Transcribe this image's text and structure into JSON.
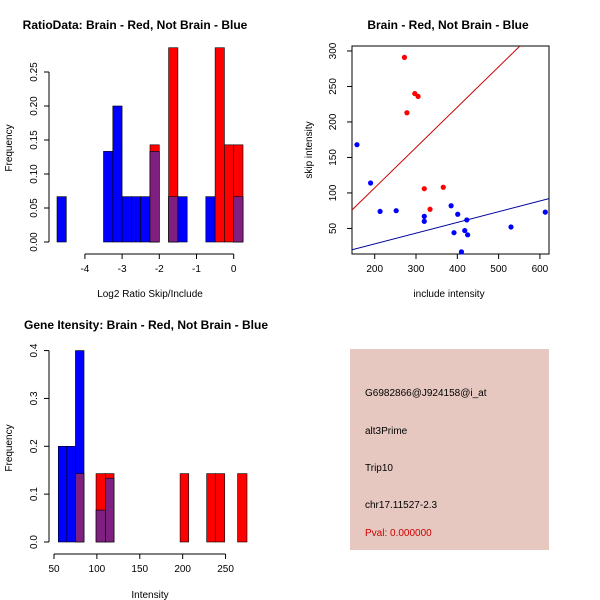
{
  "colors": {
    "brain": "#ff0000",
    "not_brain": "#0000ff",
    "overlap": "#7f1f7f",
    "info_bg": "#e6c8c0",
    "pval": "#cc0000",
    "brain_line": "#cc0000",
    "not_brain_line": "#000099"
  },
  "chart_data": [
    {
      "id": "ratio-hist",
      "type": "bar",
      "title": "RatioData: Brain - Red, Not Brain - Blue",
      "xlabel": "Log2 Ratio Skip/Include",
      "ylabel": "Frequency",
      "xlim": [
        -4.75,
        0.25
      ],
      "ylim": [
        0,
        0.3
      ],
      "xticks": [
        -4,
        -3,
        -2,
        -1,
        0
      ],
      "yticks": [
        0.0,
        0.05,
        0.1,
        0.15,
        0.2,
        0.25
      ],
      "ytick_labels": [
        "0.00",
        "0.05",
        "0.10",
        "0.15",
        "0.20",
        "0.25"
      ],
      "bin_edges": [
        -4.75,
        -4.5,
        -4.25,
        -4.0,
        -3.75,
        -3.5,
        -3.25,
        -3.0,
        -2.75,
        -2.5,
        -2.25,
        -2.0,
        -1.75,
        -1.5,
        -1.25,
        -1.0,
        -0.75,
        -0.5,
        -0.25,
        0.0,
        0.25
      ],
      "series": [
        {
          "name": "Not Brain",
          "color_key": "not_brain",
          "values": [
            0.0667,
            0,
            0,
            0,
            0,
            0.1333,
            0.2,
            0.0667,
            0.0667,
            0.0667,
            0.1333,
            0,
            0.0667,
            0.0667,
            0,
            0,
            0.0667,
            0,
            0,
            0.0667
          ]
        },
        {
          "name": "Brain",
          "color_key": "brain",
          "values": [
            0,
            0,
            0,
            0,
            0,
            0,
            0,
            0,
            0,
            0,
            0.1429,
            0,
            0.2857,
            0,
            0,
            0,
            0,
            0.2857,
            0.1429,
            0.1429
          ]
        }
      ]
    },
    {
      "id": "scatter",
      "type": "scatter",
      "title": "Brain - Red, Not Brain - Blue",
      "xlabel": "include intensity",
      "ylabel": "skip intensity",
      "xlim": [
        145,
        622
      ],
      "ylim": [
        14,
        307
      ],
      "xticks": [
        200,
        300,
        400,
        500,
        600
      ],
      "yticks": [
        50,
        100,
        150,
        200,
        250,
        300
      ],
      "series": [
        {
          "name": "Brain",
          "color_key": "brain",
          "points": [
            [
              272,
              291
            ],
            [
              278,
              213
            ],
            [
              297,
              240
            ],
            [
              305,
              236
            ],
            [
              320,
              106
            ],
            [
              334,
              77
            ],
            [
              366,
              108
            ]
          ]
        },
        {
          "name": "Not Brain",
          "color_key": "not_brain",
          "points": [
            [
              157,
              168
            ],
            [
              190,
              114
            ],
            [
              213,
              74
            ],
            [
              252,
              75
            ],
            [
              320,
              67
            ],
            [
              320,
              60
            ],
            [
              385,
              82
            ],
            [
              392,
              44
            ],
            [
              401,
              70
            ],
            [
              410,
              17
            ],
            [
              418,
              47
            ],
            [
              423,
              62
            ],
            [
              425,
              41
            ],
            [
              530,
              52
            ],
            [
              613,
              73
            ]
          ]
        }
      ],
      "fit_lines": [
        {
          "name": "Brain fit",
          "color_key": "brain_line",
          "from": [
            145,
            76
          ],
          "to": [
            622,
            347
          ]
        },
        {
          "name": "Not Brain fit",
          "color_key": "not_brain_line",
          "from": [
            145,
            20
          ],
          "to": [
            622,
            92
          ]
        }
      ]
    },
    {
      "id": "gene-hist",
      "type": "bar",
      "title": "Gene Itensity: Brain - Red, Not Brain - Blue",
      "xlabel": "Intensity",
      "ylabel": "Frequency",
      "xlim": [
        50,
        275
      ],
      "ylim": [
        0,
        0.42
      ],
      "xticks": [
        50,
        100,
        150,
        200,
        250
      ],
      "yticks": [
        0.0,
        0.1,
        0.2,
        0.3,
        0.4
      ],
      "ytick_labels": [
        "0.0",
        "0.1",
        "0.2",
        "0.3",
        "0.4"
      ],
      "bin_edges": [
        50,
        60,
        70,
        80,
        90,
        100,
        110,
        120,
        130,
        140,
        150,
        160,
        170,
        180,
        190,
        200,
        210,
        220,
        230,
        240,
        250,
        260,
        270
      ],
      "bars": [
        {
          "x0": 55,
          "x1": 65,
          "value": 0.2,
          "color_key": "not_brain"
        },
        {
          "x0": 65,
          "x1": 75,
          "value": 0.2,
          "color_key": "not_brain"
        },
        {
          "x0": 75,
          "x1": 85,
          "value": 0.4,
          "color_key": "not_brain"
        },
        {
          "x0": 75,
          "x1": 85,
          "value": 0.1429,
          "color_key": "overlap"
        },
        {
          "x0": 99,
          "x1": 110,
          "value": 0.1429,
          "color_key": "brain"
        },
        {
          "x0": 99,
          "x1": 110,
          "value": 0.0667,
          "color_key": "overlap"
        },
        {
          "x0": 110,
          "x1": 120,
          "value": 0.1429,
          "color_key": "brain"
        },
        {
          "x0": 110,
          "x1": 120,
          "value": 0.1333,
          "color_key": "overlap"
        },
        {
          "x0": 197,
          "x1": 207,
          "value": 0.1429,
          "color_key": "brain"
        },
        {
          "x0": 228,
          "x1": 238,
          "value": 0.1429,
          "color_key": "brain"
        },
        {
          "x0": 238,
          "x1": 249,
          "value": 0.1429,
          "color_key": "brain"
        },
        {
          "x0": 264,
          "x1": 275,
          "value": 0.1429,
          "color_key": "brain"
        }
      ]
    }
  ],
  "info_panel": {
    "probe_id": "G6982866@J924158@i_at",
    "event_type": "alt3Prime",
    "gene": "Trip10",
    "location": "chr17.11527-2.3",
    "pval": "Pval: 0.000000"
  }
}
